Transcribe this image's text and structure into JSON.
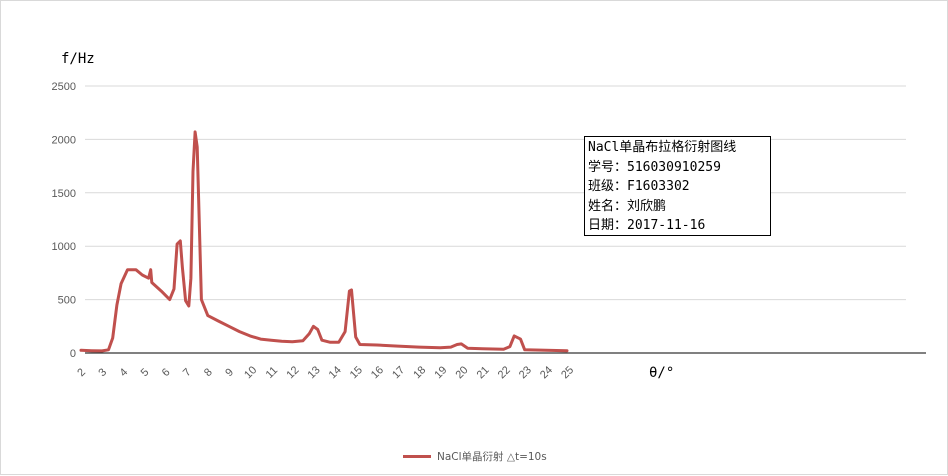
{
  "info_box": {
    "lines": [
      "NaCl单晶布拉格衍射图线",
      "学号：516030910259",
      "班级：F1603302",
      "姓名：刘欣鹏",
      "日期：2017-11-16"
    ]
  },
  "chart_data": {
    "type": "line",
    "ylabel": "f/Hz",
    "xlabel": "θ/°",
    "ylim": [
      0,
      2600
    ],
    "yticks": [
      0,
      500,
      1000,
      1500,
      2000,
      2500
    ],
    "xticks": [
      2,
      3,
      4,
      5,
      6,
      7,
      8,
      9,
      10,
      11,
      12,
      13,
      14,
      15,
      16,
      17,
      18,
      19,
      20,
      21,
      22,
      23,
      24,
      25
    ],
    "xlim": [
      2,
      40
    ],
    "grid": "horizontal",
    "legend_position": "bottom",
    "series_color": "#c0504d",
    "series": [
      {
        "name": "NaCl单晶衍射 △t=10s",
        "x": [
          2,
          2.5,
          3,
          3.3,
          3.5,
          3.7,
          3.9,
          4.2,
          4.6,
          4.9,
          5.2,
          5.3,
          5.35,
          5.8,
          6.2,
          6.4,
          6.55,
          6.7,
          6.8,
          6.95,
          7.1,
          7.2,
          7.3,
          7.4,
          7.5,
          7.7,
          8.0,
          8.5,
          9.0,
          9.5,
          10.0,
          10.5,
          11.0,
          11.5,
          12.0,
          12.5,
          12.8,
          13.0,
          13.2,
          13.4,
          13.8,
          14.2,
          14.5,
          14.7,
          14.8,
          15.0,
          15.2,
          16,
          17,
          18,
          19,
          19.5,
          19.8,
          20.0,
          20.3,
          21,
          22,
          22.3,
          22.5,
          22.8,
          23,
          24,
          25
        ],
        "y": [
          25,
          22,
          20,
          30,
          140,
          450,
          650,
          780,
          780,
          730,
          700,
          780,
          660,
          580,
          500,
          600,
          1020,
          1050,
          800,
          490,
          440,
          700,
          1700,
          2070,
          1930,
          500,
          350,
          300,
          250,
          200,
          160,
          130,
          120,
          110,
          105,
          115,
          180,
          250,
          220,
          120,
          100,
          100,
          200,
          580,
          590,
          150,
          80,
          75,
          65,
          55,
          50,
          55,
          80,
          85,
          45,
          40,
          35,
          60,
          160,
          130,
          30,
          25,
          22
        ]
      }
    ]
  }
}
